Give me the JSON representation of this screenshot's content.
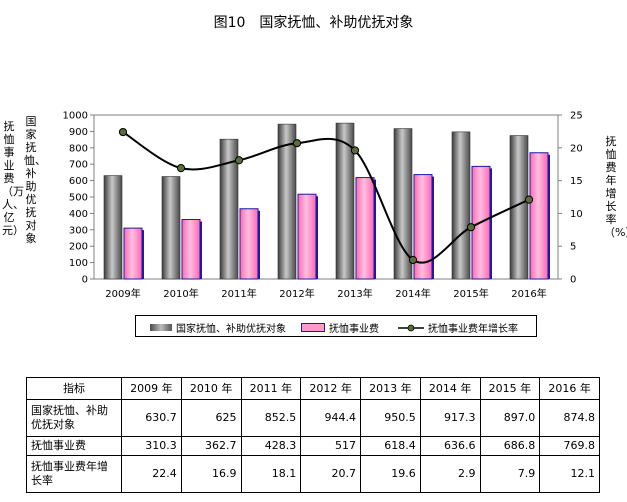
{
  "figure_title": "图10　国家抚恤、补助优抚对象",
  "y_left_label": "国家抚恤、补助优抚对象",
  "y_left_unit": "抚恤事业费（万人、亿元）",
  "y_right_label": "抚恤费年增长率（%）",
  "legend": {
    "bar1": "国家抚恤、补助优抚对象",
    "bar2": "抚恤事业费",
    "line": "抚恤事业费年增长率"
  },
  "colors": {
    "bar1": "#8c8c8c",
    "bar2": "#ff99cc",
    "bar2_border": "#1a1aa6",
    "line": "#000000",
    "marker": "#5a6e3c"
  },
  "chart_data": {
    "type": "bar",
    "categories": [
      "2009年",
      "2010年",
      "2011年",
      "2012年",
      "2013年",
      "2014年",
      "2015年",
      "2016年"
    ],
    "series": [
      {
        "name": "国家抚恤、补助优抚对象",
        "type": "bar",
        "axis": "left",
        "values": [
          630.7,
          625,
          852.5,
          944.4,
          950.5,
          917.3,
          897.0,
          874.8
        ]
      },
      {
        "name": "抚恤事业费",
        "type": "bar",
        "axis": "left",
        "values": [
          310.3,
          362.7,
          428.3,
          517,
          618.4,
          636.6,
          686.8,
          769.8
        ]
      },
      {
        "name": "抚恤事业费年增长率",
        "type": "line",
        "axis": "right",
        "values": [
          22.4,
          16.9,
          18.1,
          20.7,
          19.6,
          2.9,
          7.9,
          12.1
        ]
      }
    ],
    "ylim_left": [
      0,
      1000
    ],
    "yticks_left": [
      "0",
      "100",
      "200",
      "300",
      "400",
      "500",
      "600",
      "700",
      "800",
      "900",
      "1000"
    ],
    "ylim_right": [
      0,
      25
    ],
    "yticks_right": [
      "0",
      "5",
      "10",
      "15",
      "20",
      "25"
    ]
  },
  "table": {
    "header": [
      "指标",
      "2009 年",
      "2010 年",
      "2011 年",
      "2012 年",
      "2013 年",
      "2014 年",
      "2015 年",
      "2016 年"
    ],
    "rows": [
      {
        "name": "国家抚恤、补助优抚对象",
        "values": [
          "630.7",
          "625",
          "852.5",
          "944.4",
          "950.5",
          "917.3",
          "897.0",
          "874.8"
        ]
      },
      {
        "name": "抚恤事业费",
        "values": [
          "310.3",
          "362.7",
          "428.3",
          "517",
          "618.4",
          "636.6",
          "686.8",
          "769.8"
        ]
      },
      {
        "name": "抚恤事业费年增长率",
        "values": [
          "22.4",
          "16.9",
          "18.1",
          "20.7",
          "19.6",
          "2.9",
          "7.9",
          "12.1"
        ]
      }
    ]
  }
}
